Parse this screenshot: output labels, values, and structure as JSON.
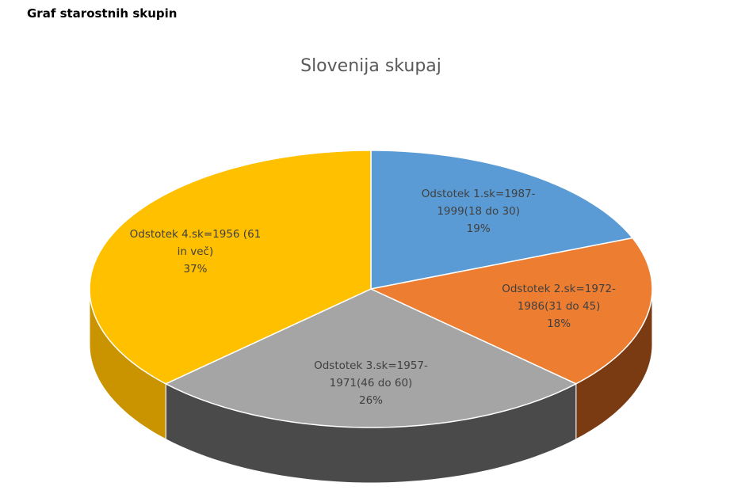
{
  "header": {
    "title": "Graf starostnih skupin"
  },
  "chart_data": {
    "type": "pie3d",
    "title": "Slovenija skupaj",
    "categories": [
      "Odstotek 1.sk=1987-1999(18 do 30)",
      "Odstotek 2.sk=1972-1986(31 do 45)",
      "Odstotek 3.sk=1957-1971(46 do 60)",
      "Odstotek 4.sk=1956 (61 in več)"
    ],
    "values": [
      19,
      18,
      26,
      37
    ],
    "value_labels": [
      "19%",
      "18%",
      "26%",
      "37%"
    ],
    "colors": [
      "#5b9bd5",
      "#ed7d31",
      "#a5a5a5",
      "#ffc000"
    ],
    "side_colors": [
      "#2e5f8c",
      "#7a3a12",
      "#4a4a4a",
      "#c99400"
    ]
  }
}
